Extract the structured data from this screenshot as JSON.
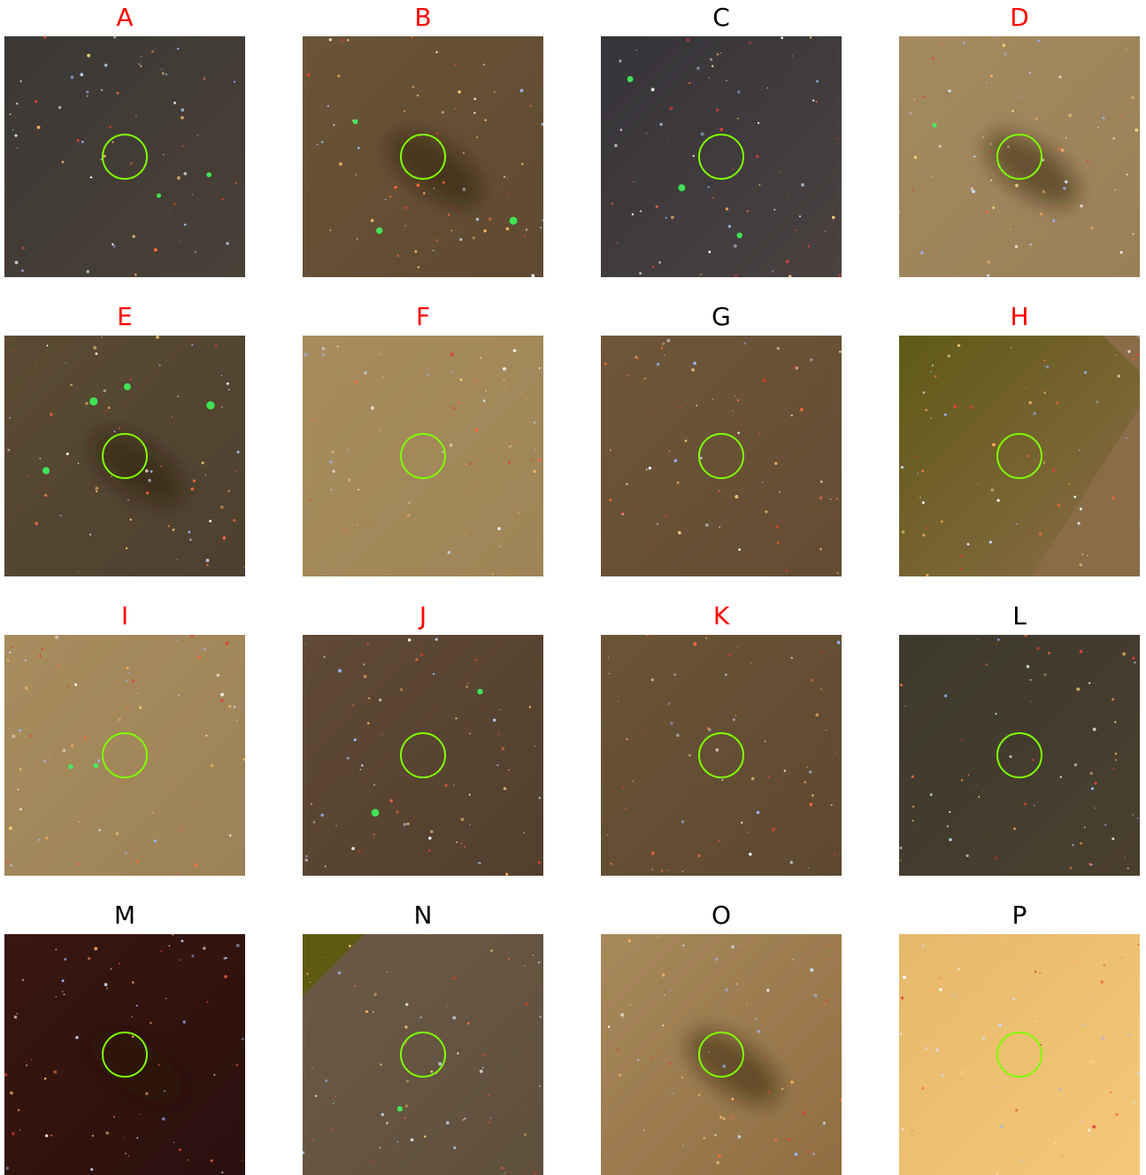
{
  "colors": {
    "label_highlight": "#ff0000",
    "label_default": "#000000",
    "aperture_circle": "#7fff00"
  },
  "panels": [
    {
      "label": "A",
      "highlight": true,
      "background": "#3b3835",
      "bg_edge": "#4a4137",
      "dark_lane": false,
      "green_sources": 2
    },
    {
      "label": "B",
      "highlight": true,
      "background": "#6a5436",
      "bg_edge": "#5e4a32",
      "dark_lane": true,
      "green_sources": 3
    },
    {
      "label": "C",
      "highlight": false,
      "background": "#36343a",
      "bg_edge": "#4a4240",
      "dark_lane": false,
      "green_sources": 3
    },
    {
      "label": "D",
      "highlight": true,
      "background": "#a48a60",
      "bg_edge": "#9a8058",
      "dark_lane": true,
      "green_sources": 1
    },
    {
      "label": "E",
      "highlight": true,
      "background": "#5b4b33",
      "bg_edge": "#4d4030",
      "dark_lane": true,
      "green_sources": 4
    },
    {
      "label": "F",
      "highlight": true,
      "background": "#a88c5e",
      "bg_edge": "#9e8456",
      "dark_lane": false,
      "green_sources": 0
    },
    {
      "label": "G",
      "highlight": false,
      "background": "#6e5638",
      "bg_edge": "#634c33",
      "dark_lane": false,
      "green_sources": 0
    },
    {
      "label": "H",
      "highlight": true,
      "background": "#5f5a16",
      "bg_edge": "#8a6c48",
      "dark_lane": false,
      "green_sources": 0
    },
    {
      "label": "I",
      "highlight": true,
      "background": "#a88c5e",
      "bg_edge": "#9c8257",
      "dark_lane": false,
      "green_sources": 2
    },
    {
      "label": "J",
      "highlight": true,
      "background": "#5e4a35",
      "bg_edge": "#523f2e",
      "dark_lane": false,
      "green_sources": 2
    },
    {
      "label": "K",
      "highlight": true,
      "background": "#6b5436",
      "bg_edge": "#5d4831",
      "dark_lane": false,
      "green_sources": 0
    },
    {
      "label": "L",
      "highlight": false,
      "background": "#3d3a2e",
      "bg_edge": "#4a3f2e",
      "dark_lane": false,
      "green_sources": 0
    },
    {
      "label": "M",
      "highlight": false,
      "background": "#3a1610",
      "bg_edge": "#2a100d",
      "dark_lane": true,
      "green_sources": 0
    },
    {
      "label": "N",
      "highlight": false,
      "background": "#6a5a45",
      "bg_edge": "#5f4f3d",
      "dark_lane": false,
      "green_sources": 1
    },
    {
      "label": "O",
      "highlight": false,
      "background": "#a8895c",
      "bg_edge": "#8f6e42",
      "dark_lane": true,
      "green_sources": 0
    },
    {
      "label": "P",
      "highlight": false,
      "background": "#e6b86c",
      "bg_edge": "#f5c878",
      "dark_lane": false,
      "green_sources": 0
    }
  ]
}
